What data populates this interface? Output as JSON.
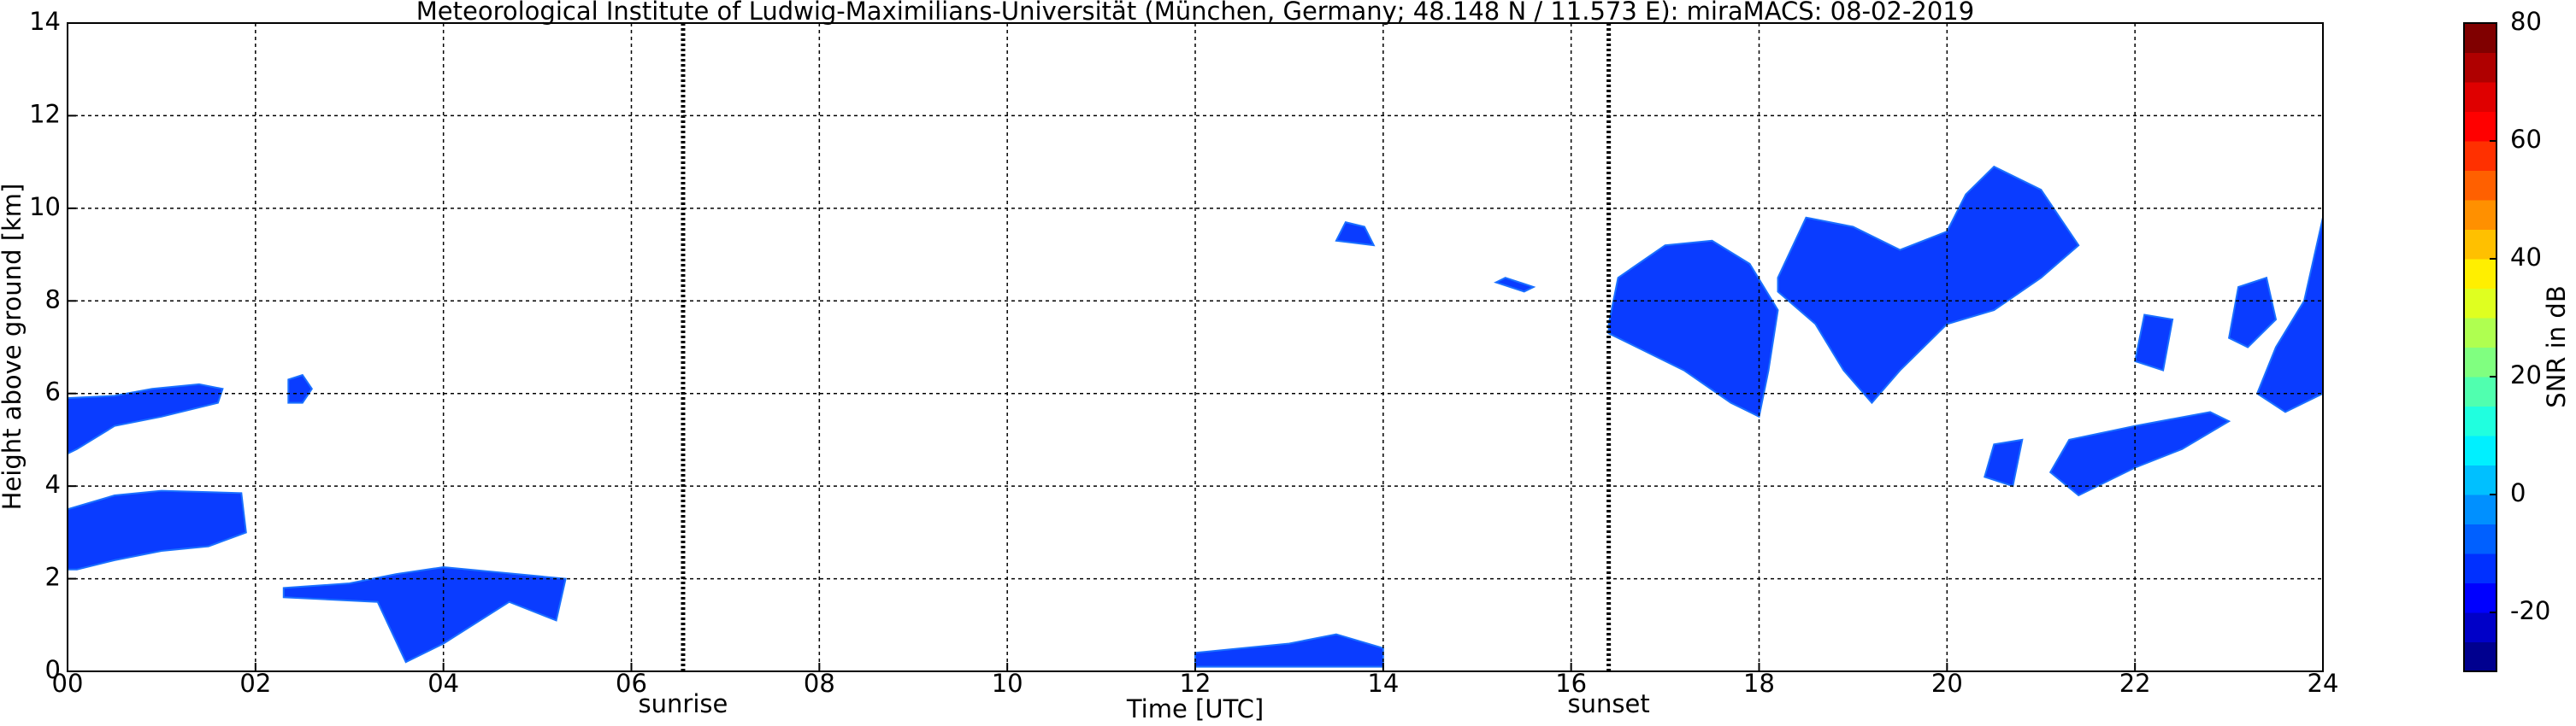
{
  "chart_data": {
    "type": "time-height",
    "title": "Meteorological Institute of Ludwig-Maximilians-Universität (München, Germany; 48.148 N / 11.573 E):    miraMACS: 08-02-2019",
    "x_label": "Time [UTC]",
    "y_label": "Height above ground [km]",
    "xlim": [
      0,
      24
    ],
    "xticks": [
      {
        "value": 0,
        "label": "00"
      },
      {
        "value": 2,
        "label": "02"
      },
      {
        "value": 4,
        "label": "04"
      },
      {
        "value": 6,
        "label": "06"
      },
      {
        "value": 8,
        "label": "08"
      },
      {
        "value": 10,
        "label": "10"
      },
      {
        "value": 12,
        "label": "12"
      },
      {
        "value": 14,
        "label": "14"
      },
      {
        "value": 16,
        "label": "16"
      },
      {
        "value": 18,
        "label": "18"
      },
      {
        "value": 20,
        "label": "20"
      },
      {
        "value": 22,
        "label": "22"
      },
      {
        "value": 24,
        "label": "24"
      }
    ],
    "ylim": [
      0,
      14
    ],
    "yticks": [
      0,
      2,
      4,
      6,
      8,
      10,
      12,
      14
    ],
    "grid": true,
    "annotations": [
      {
        "text": "sunrise",
        "x": 6.55
      },
      {
        "text": "sunset",
        "x": 16.4
      }
    ],
    "echo_color": "#0a3cff",
    "echoes": [
      [
        [
          0,
          4.7
        ],
        [
          0,
          5.9
        ],
        [
          0.5,
          5.95
        ],
        [
          0.9,
          6.1
        ],
        [
          1.4,
          6.2
        ],
        [
          1.65,
          6.1
        ],
        [
          1.6,
          5.8
        ],
        [
          1,
          5.5
        ],
        [
          0.5,
          5.3
        ],
        [
          0.1,
          4.8
        ]
      ],
      [
        [
          0,
          2.2
        ],
        [
          0,
          3.5
        ],
        [
          0.5,
          3.8
        ],
        [
          1,
          3.9
        ],
        [
          1.85,
          3.85
        ],
        [
          1.9,
          3.0
        ],
        [
          1.5,
          2.7
        ],
        [
          1,
          2.6
        ],
        [
          0.5,
          2.4
        ],
        [
          0.1,
          2.2
        ]
      ],
      [
        [
          2.35,
          5.8
        ],
        [
          2.35,
          6.3
        ],
        [
          2.5,
          6.4
        ],
        [
          2.6,
          6.1
        ],
        [
          2.5,
          5.8
        ]
      ],
      [
        [
          2.3,
          1.8
        ],
        [
          3,
          1.9
        ],
        [
          3.5,
          2.1
        ],
        [
          4,
          2.25
        ],
        [
          5.3,
          2.0
        ],
        [
          5.2,
          1.1
        ],
        [
          4.7,
          1.5
        ],
        [
          4,
          0.6
        ],
        [
          3.6,
          0.2
        ],
        [
          3.3,
          1.5
        ],
        [
          2.3,
          1.6
        ]
      ],
      [
        [
          12,
          0.1
        ],
        [
          12,
          0.4
        ],
        [
          13,
          0.6
        ],
        [
          13.5,
          0.8
        ],
        [
          14,
          0.5
        ],
        [
          14,
          0.1
        ]
      ],
      [
        [
          13.5,
          9.3
        ],
        [
          13.6,
          9.7
        ],
        [
          13.8,
          9.6
        ],
        [
          13.9,
          9.2
        ]
      ],
      [
        [
          15.2,
          8.4
        ],
        [
          15.3,
          8.5
        ],
        [
          15.6,
          8.3
        ],
        [
          15.5,
          8.2
        ]
      ],
      [
        [
          16.4,
          7.5
        ],
        [
          16.5,
          8.5
        ],
        [
          17,
          9.2
        ],
        [
          17.5,
          9.3
        ],
        [
          17.9,
          8.8
        ],
        [
          18.2,
          7.8
        ],
        [
          18.1,
          6.5
        ],
        [
          18.0,
          5.5
        ],
        [
          17.7,
          5.8
        ],
        [
          17.2,
          6.5
        ],
        [
          16.7,
          7.0
        ],
        [
          16.4,
          7.3
        ]
      ],
      [
        [
          18.2,
          8.5
        ],
        [
          18.5,
          9.8
        ],
        [
          19,
          9.6
        ],
        [
          19.5,
          9.1
        ],
        [
          20,
          9.5
        ],
        [
          20.2,
          10.3
        ],
        [
          20.5,
          10.9
        ],
        [
          21,
          10.4
        ],
        [
          21.4,
          9.2
        ],
        [
          21.0,
          8.5
        ],
        [
          20.5,
          7.8
        ],
        [
          20,
          7.5
        ],
        [
          19.5,
          6.5
        ],
        [
          19.2,
          5.8
        ],
        [
          18.9,
          6.5
        ],
        [
          18.6,
          7.5
        ],
        [
          18.2,
          8.2
        ]
      ],
      [
        [
          21.1,
          4.3
        ],
        [
          21.3,
          5
        ],
        [
          22,
          5.3
        ],
        [
          22.8,
          5.6
        ],
        [
          23,
          5.4
        ],
        [
          22.5,
          4.8
        ],
        [
          22,
          4.4
        ],
        [
          21.4,
          3.8
        ]
      ],
      [
        [
          23.0,
          7.2
        ],
        [
          23.1,
          8.3
        ],
        [
          23.4,
          8.5
        ],
        [
          23.5,
          7.6
        ],
        [
          23.2,
          7.0
        ]
      ],
      [
        [
          23.3,
          6
        ],
        [
          23.5,
          7
        ],
        [
          23.8,
          8
        ],
        [
          24,
          9.8
        ],
        [
          24,
          6
        ],
        [
          23.6,
          5.6
        ]
      ],
      [
        [
          20.4,
          4.2
        ],
        [
          20.5,
          4.9
        ],
        [
          20.8,
          5.0
        ],
        [
          20.7,
          4.0
        ]
      ],
      [
        [
          22.0,
          6.7
        ],
        [
          22.1,
          7.7
        ],
        [
          22.4,
          7.6
        ],
        [
          22.3,
          6.5
        ]
      ]
    ],
    "colorbar": {
      "label": "SNR in dB",
      "lim": [
        -30,
        80
      ],
      "ticks": [
        -20,
        0,
        20,
        40,
        60,
        80
      ],
      "colors": [
        "#00008f",
        "#0000c8",
        "#0000ff",
        "#0030ff",
        "#0060ff",
        "#0090ff",
        "#00c0ff",
        "#00f0ff",
        "#20ffdf",
        "#50ffaf",
        "#80ff80",
        "#afff50",
        "#dfff20",
        "#ffef00",
        "#ffc000",
        "#ff9000",
        "#ff6000",
        "#ff3000",
        "#ff0000",
        "#df0000",
        "#af0000",
        "#800000"
      ]
    }
  }
}
